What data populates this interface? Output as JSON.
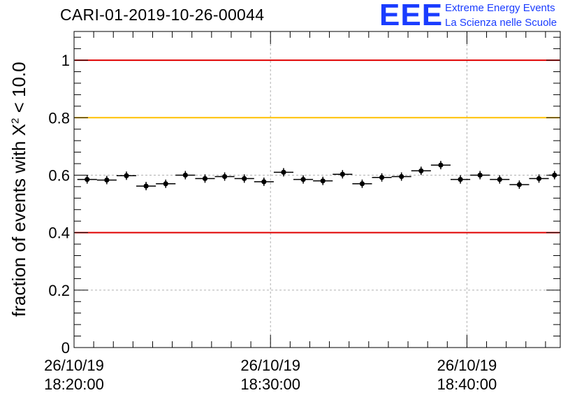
{
  "header": {
    "title": "CARI-01-2019-10-26-00044",
    "logo_text": "EEE",
    "logo_line1": "Extreme Energy Events",
    "logo_line2": "La Scienza nelle Scuole"
  },
  "axis_label": {
    "prefix": "fraction of events with ",
    "chi": "X",
    "sup": "2",
    "suffix": " < 10.0"
  },
  "colors": {
    "red_line": "#e00000",
    "yellow_line": "#ffc000",
    "marker": "#000000",
    "grid": "#b0b0b0",
    "logo": "#1a3cff"
  },
  "chart_data": {
    "type": "scatter",
    "title": "CARI-01-2019-10-26-00044",
    "xlabel": "",
    "ylabel": "fraction of events with X² < 10.0",
    "xlim": [
      "26/10/19 18:20:00",
      "26/10/19 18:44:45"
    ],
    "ylim": [
      0,
      1.1
    ],
    "grid": true,
    "x_tick_labels": [
      {
        "date": "26/10/19",
        "time": "18:20:00"
      },
      {
        "date": "26/10/19",
        "time": "18:30:00"
      },
      {
        "date": "26/10/19",
        "time": "18:40:00"
      }
    ],
    "y_ticks": [
      0,
      0.2,
      0.4,
      0.6,
      0.8,
      1
    ],
    "y_tick_labels": [
      "0",
      "0.2",
      "0.4",
      "0.6",
      "0.8",
      "1"
    ],
    "reference_lines": [
      {
        "y": 1.0,
        "color": "red"
      },
      {
        "y": 0.8,
        "color": "yellow"
      },
      {
        "y": 0.4,
        "color": "red"
      }
    ],
    "series": [
      {
        "x_bin_start": [
          "18:20:10",
          "18:21:10",
          "18:22:10",
          "18:23:10",
          "18:24:10",
          "18:25:10",
          "18:26:10",
          "18:27:10",
          "18:28:10",
          "18:29:10",
          "18:30:10",
          "18:31:10",
          "18:32:10",
          "18:33:10",
          "18:34:10",
          "18:35:10",
          "18:36:10",
          "18:37:10",
          "18:38:10",
          "18:39:10",
          "18:40:10",
          "18:41:10",
          "18:42:10",
          "18:43:10",
          "18:44:10"
        ],
        "x_bin_end": [
          "18:21:10",
          "18:22:10",
          "18:23:10",
          "18:24:10",
          "18:25:10",
          "18:26:10",
          "18:27:10",
          "18:28:10",
          "18:29:10",
          "18:30:10",
          "18:31:10",
          "18:32:10",
          "18:33:10",
          "18:34:10",
          "18:35:10",
          "18:36:10",
          "18:37:10",
          "18:38:10",
          "18:39:10",
          "18:40:10",
          "18:41:10",
          "18:42:10",
          "18:43:10",
          "18:44:10",
          "18:44:45"
        ],
        "y": [
          0.585,
          0.583,
          0.598,
          0.562,
          0.57,
          0.6,
          0.588,
          0.595,
          0.588,
          0.577,
          0.61,
          0.585,
          0.58,
          0.603,
          0.57,
          0.592,
          0.595,
          0.615,
          0.635,
          0.585,
          0.6,
          0.585,
          0.567,
          0.588,
          0.6
        ]
      }
    ]
  }
}
